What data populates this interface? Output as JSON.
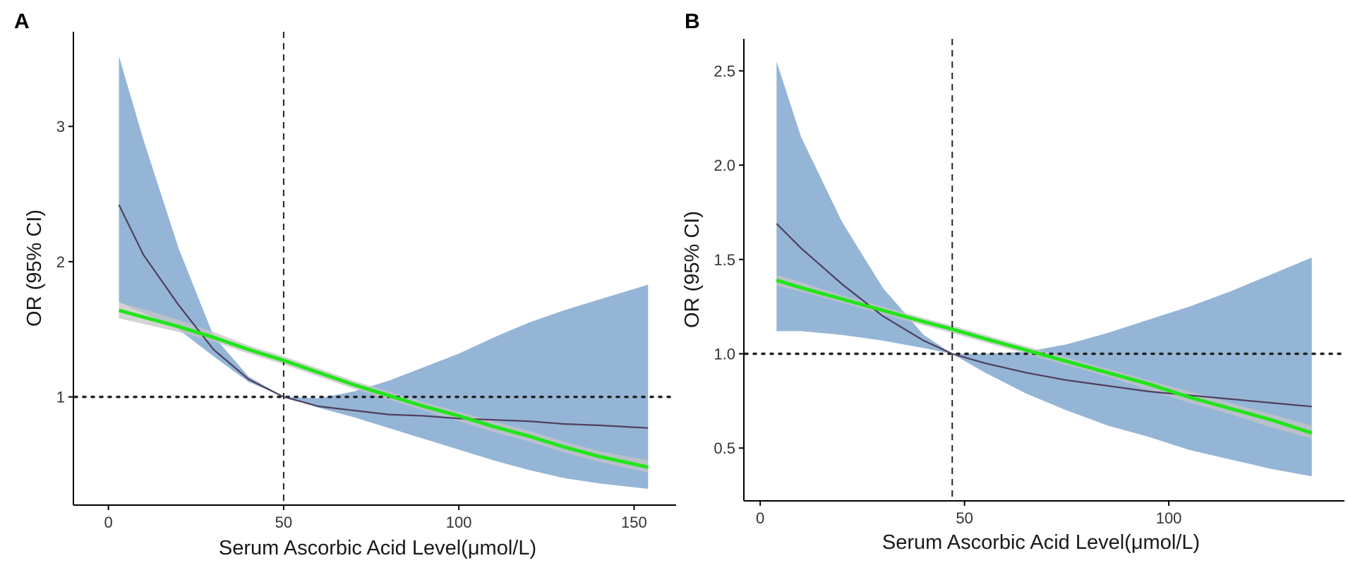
{
  "figure": {
    "colors": {
      "ci_band": "#94b5d6",
      "spline": "#4f3f5e",
      "linear_band": "#c4c4c4",
      "linear_fit": "#22e51b",
      "reference": "#222222",
      "axis": "#000000"
    }
  },
  "chart_data": [
    {
      "type": "line",
      "panel_label": "A",
      "xlabel": "Serum Ascorbic Acid Level(μmol/L)",
      "ylabel": "OR (95% CI)",
      "xlim": [
        -10,
        162
      ],
      "ylim": [
        0.2,
        3.7
      ],
      "x_ticks": [
        0,
        50,
        100,
        150
      ],
      "x_tick_labels": [
        "0",
        "50",
        "100",
        "150"
      ],
      "y_ticks": [
        1,
        2,
        3
      ],
      "y_tick_labels": [
        "1",
        "2",
        "3"
      ],
      "reference_x": 50,
      "reference_y": 1,
      "x": [
        3,
        10,
        20,
        30,
        40,
        50,
        60,
        70,
        80,
        90,
        100,
        110,
        120,
        130,
        140,
        154
      ],
      "spline_or": [
        2.42,
        2.05,
        1.68,
        1.35,
        1.13,
        1.0,
        0.93,
        0.9,
        0.87,
        0.86,
        0.84,
        0.83,
        0.82,
        0.8,
        0.79,
        0.77
      ],
      "ci_lower": [
        1.7,
        1.62,
        1.5,
        1.3,
        1.11,
        1.0,
        0.92,
        0.85,
        0.77,
        0.69,
        0.61,
        0.53,
        0.46,
        0.4,
        0.36,
        0.32
      ],
      "ci_upper": [
        3.52,
        2.9,
        2.1,
        1.45,
        1.15,
        1.0,
        0.99,
        1.04,
        1.12,
        1.22,
        1.32,
        1.44,
        1.55,
        1.64,
        1.72,
        1.83
      ],
      "linear_or": [
        1.64,
        1.59,
        1.52,
        1.44,
        1.35,
        1.27,
        1.18,
        1.09,
        1.01,
        0.93,
        0.86,
        0.78,
        0.71,
        0.63,
        0.56,
        0.48
      ],
      "linear_lower": [
        1.58,
        1.54,
        1.48,
        1.41,
        1.32,
        1.24,
        1.15,
        1.06,
        0.98,
        0.9,
        0.82,
        0.74,
        0.67,
        0.59,
        0.52,
        0.44
      ],
      "linear_upper": [
        1.7,
        1.65,
        1.57,
        1.48,
        1.38,
        1.3,
        1.21,
        1.12,
        1.04,
        0.96,
        0.89,
        0.82,
        0.75,
        0.67,
        0.6,
        0.53
      ]
    },
    {
      "type": "line",
      "panel_label": "B",
      "xlabel": "Serum Ascorbic Acid Level(μmol/L)",
      "ylabel": "OR (95% CI)",
      "xlim": [
        -4,
        143
      ],
      "ylim": [
        0.22,
        2.67
      ],
      "x_ticks": [
        0,
        50,
        100
      ],
      "x_tick_labels": [
        "0",
        "50",
        "100"
      ],
      "y_ticks": [
        0.5,
        1.0,
        1.5,
        2.0,
        2.5
      ],
      "y_tick_labels": [
        "0.5",
        "1.0",
        "1.5",
        "2.0",
        "2.5"
      ],
      "reference_x": 47,
      "reference_y": 1.0,
      "x": [
        4,
        10,
        20,
        30,
        40,
        47,
        55,
        65,
        75,
        85,
        95,
        105,
        115,
        125,
        135
      ],
      "spline_or": [
        1.69,
        1.56,
        1.37,
        1.2,
        1.07,
        1.0,
        0.95,
        0.9,
        0.86,
        0.83,
        0.8,
        0.78,
        0.76,
        0.74,
        0.72
      ],
      "ci_lower": [
        1.12,
        1.12,
        1.1,
        1.07,
        1.03,
        1.0,
        0.9,
        0.79,
        0.7,
        0.62,
        0.56,
        0.49,
        0.44,
        0.39,
        0.35
      ],
      "ci_upper": [
        2.55,
        2.15,
        1.7,
        1.35,
        1.1,
        1.0,
        1.0,
        1.01,
        1.05,
        1.11,
        1.18,
        1.25,
        1.33,
        1.42,
        1.51
      ],
      "linear_or": [
        1.39,
        1.35,
        1.29,
        1.23,
        1.17,
        1.13,
        1.08,
        1.02,
        0.96,
        0.9,
        0.84,
        0.77,
        0.71,
        0.65,
        0.58
      ],
      "linear_lower": [
        1.36,
        1.33,
        1.27,
        1.21,
        1.15,
        1.11,
        1.06,
        1.0,
        0.94,
        0.88,
        0.81,
        0.74,
        0.68,
        0.61,
        0.55
      ],
      "linear_upper": [
        1.42,
        1.38,
        1.31,
        1.25,
        1.19,
        1.15,
        1.1,
        1.04,
        0.98,
        0.92,
        0.86,
        0.8,
        0.74,
        0.68,
        0.62
      ]
    }
  ]
}
